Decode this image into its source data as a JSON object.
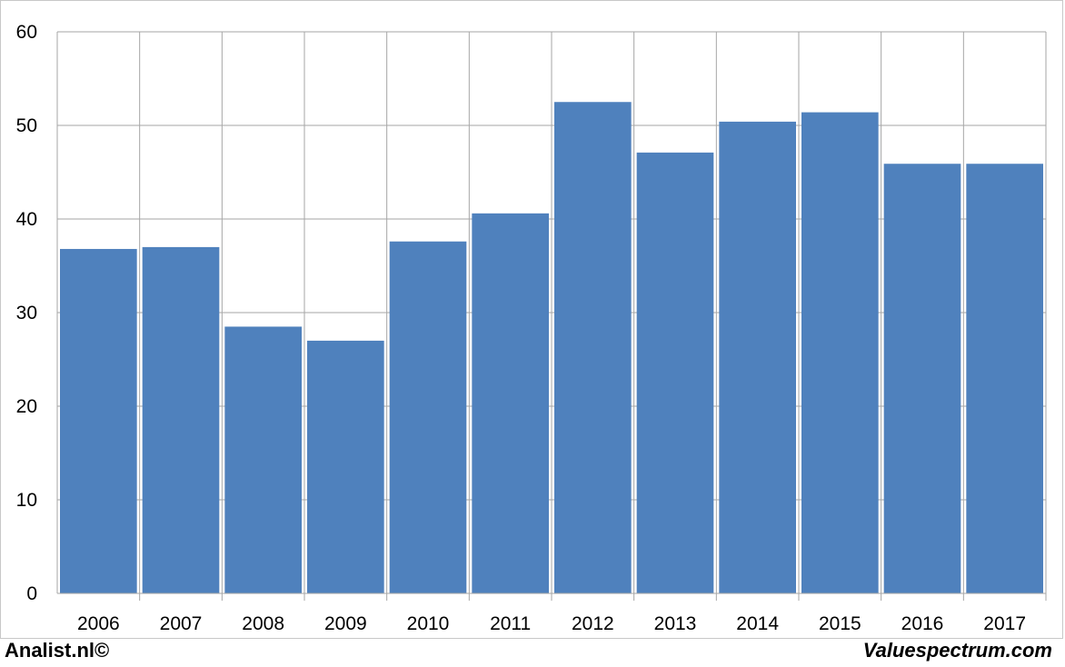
{
  "footer": {
    "left": "Analist.nl©",
    "right": "Valuespectrum.com"
  },
  "colors": {
    "bar": "#4f81bd",
    "grid": "#a6a6a6"
  },
  "chart_data": {
    "type": "bar",
    "title": "",
    "xlabel": "",
    "ylabel": "",
    "categories": [
      "2006",
      "2007",
      "2008",
      "2009",
      "2010",
      "2011",
      "2012",
      "2013",
      "2014",
      "2015",
      "2016",
      "2017"
    ],
    "values": [
      36.8,
      37.0,
      28.5,
      27.0,
      37.6,
      40.6,
      52.5,
      47.1,
      50.4,
      51.4,
      45.9,
      45.9
    ],
    "ylim": [
      0,
      60
    ],
    "yticks": [
      0,
      10,
      20,
      30,
      40,
      50,
      60
    ],
    "grid": true,
    "legend": "none"
  }
}
